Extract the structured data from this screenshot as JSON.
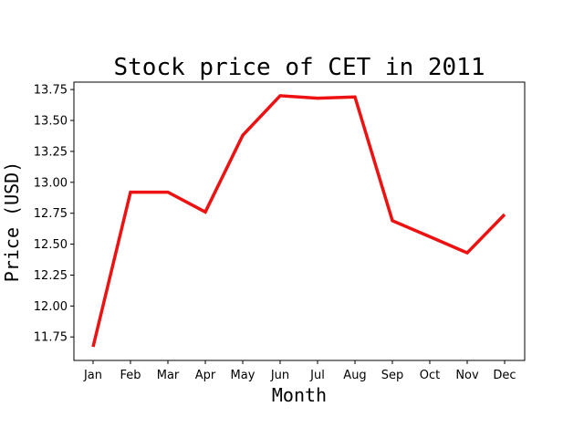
{
  "chart_data": {
    "type": "line",
    "title": "Stock price of CET in 2011",
    "xlabel": "Month",
    "ylabel": "Price (USD)",
    "categories": [
      "Jan",
      "Feb",
      "Mar",
      "Apr",
      "May",
      "Jun",
      "Jul",
      "Aug",
      "Sep",
      "Oct",
      "Nov",
      "Dec"
    ],
    "series": [
      {
        "values": [
          11.67,
          12.92,
          12.92,
          12.76,
          13.38,
          13.7,
          13.68,
          13.69,
          12.69,
          12.56,
          12.43,
          12.74
        ],
        "color": "#ee1111"
      }
    ],
    "ylim": [
      11.56,
      13.81
    ],
    "yticks": [
      11.75,
      12.0,
      12.25,
      12.5,
      12.75,
      13.0,
      13.25,
      13.5,
      13.75
    ],
    "ytick_labels": [
      "11.75",
      "12.00",
      "12.25",
      "12.50",
      "12.75",
      "13.00",
      "13.25",
      "13.50",
      "13.75"
    ],
    "grid": false,
    "legend": false
  }
}
